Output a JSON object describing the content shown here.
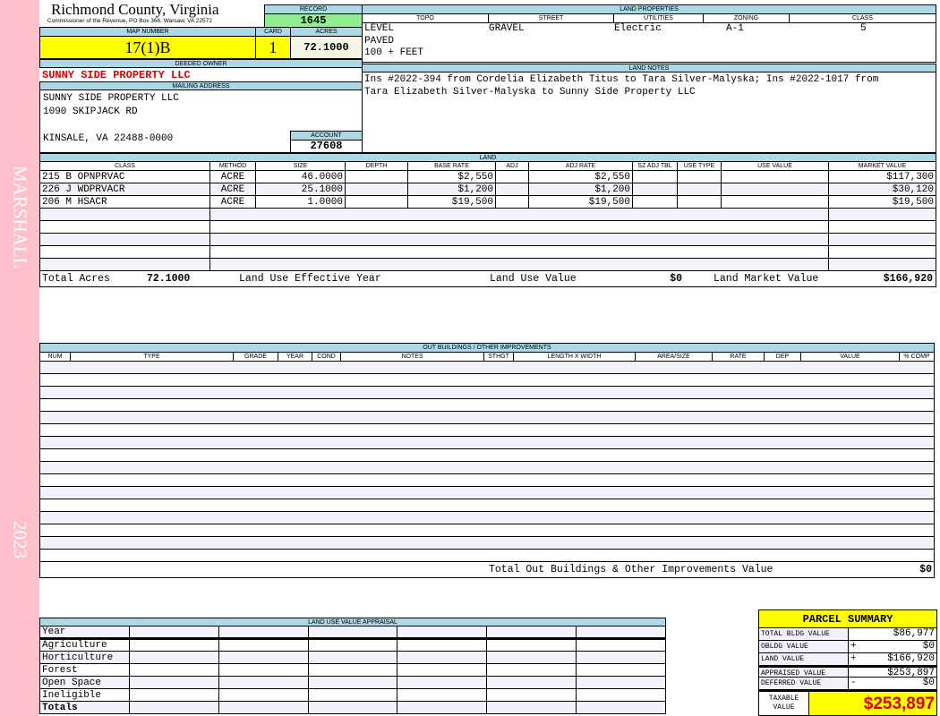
{
  "sidebar": {
    "district": "MARSHALL",
    "year": "2023",
    "color": "#ffc0cb"
  },
  "header": {
    "title": "Richmond County, Virginia",
    "subtitle": "Commissioner of the Revenue, PO Box 366, Warsaw, VA 22572",
    "record_label": "RECORD",
    "record": "1645"
  },
  "parcel": {
    "map_label": "MAP NUMBER",
    "map_number": "17(1)B",
    "card_label": "CARD",
    "card": "1",
    "acres_label": "ACRES",
    "acres": "72.1000"
  },
  "owner": {
    "label": "DEEDED OWNER",
    "name": "SUNNY SIDE PROPERTY LLC",
    "mail_label": "MAILING ADDRESS",
    "address": [
      "SUNNY SIDE PROPERTY LLC",
      "1090 SKIPJACK RD",
      "",
      "KINSALE, VA 22488-0000"
    ],
    "account_label": "ACCOUNT",
    "account": "27608"
  },
  "land_properties": {
    "label": "LAND PROPERTIES",
    "columns": [
      "TOPO",
      "STREET",
      "UTILITIES",
      "ZONING",
      "CLASS"
    ],
    "topo": [
      "LEVEL",
      "PAVED",
      "100 + FEET"
    ],
    "street": "GRAVEL",
    "utilities": "Electric",
    "zoning": "A-1",
    "class": "5"
  },
  "land_notes": {
    "label": "LAND NOTES",
    "text": "Ins #2022-394 from Cordelia Elizabeth Titus to Tara Silver-Malyska; Ins #2022-1017 from Tara Elizabeth Silver-Malyska to Sunny Side Property LLC"
  },
  "land": {
    "label": "LAND",
    "columns": [
      "CLASS",
      "METHOD",
      "SIZE",
      "DEPTH",
      "BASE RATE",
      "ADJ",
      "ADJ RATE",
      "SZ ADJ TBL",
      "USE TYPE",
      "USE VALUE",
      "MARKET VALUE"
    ],
    "rows": [
      [
        "215 B OPNPRVAC",
        "ACRE",
        "46.0000",
        "",
        "$2,550",
        "",
        "$2,550",
        "",
        "",
        "",
        "$117,300"
      ],
      [
        "226 J WDPRVACR",
        "ACRE",
        "25.1000",
        "",
        "$1,200",
        "",
        "$1,200",
        "",
        "",
        "",
        "$30,120"
      ],
      [
        "206 M HSACR",
        "ACRE",
        "1.0000",
        "",
        "$19,500",
        "",
        "$19,500",
        "",
        "",
        "",
        "$19,500"
      ]
    ],
    "total_acres_label": "Total Acres",
    "total_acres": "72.1000",
    "effective_year_label": "Land Use Effective Year",
    "effective_year": "",
    "use_value_label": "Land Use Value",
    "use_value": "$0",
    "market_value_label": "Land Market Value",
    "market_value": "$166,920"
  },
  "outbuildings": {
    "label": "OUT BUILDINGS / OTHER IMPROVEMENTS",
    "columns": [
      "NUM",
      "TYPE",
      "GRADE",
      "YEAR",
      "COND",
      "NOTES",
      "STHGT",
      "LENGTH X WIDTH",
      "AREA/SIZE",
      "RATE",
      "DEP",
      "VALUE",
      "% COMP"
    ],
    "total_label": "Total Out Buildings & Other Improvements Value",
    "total": "$0"
  },
  "land_use_appraisal": {
    "label": "LAND USE VALUE APPRAISAL",
    "year_label": "Year",
    "rows": [
      "Agriculture",
      "Horticulture",
      "Forest",
      "Open Space",
      "Ineligible"
    ],
    "totals_label": "Totals"
  },
  "summary": {
    "title": "PARCEL SUMMARY",
    "rows": [
      {
        "label": "TOTAL BLDG VALUE",
        "op": "",
        "value": "$86,977"
      },
      {
        "label": "OBLDG VALUE",
        "op": "+",
        "value": "$0"
      },
      {
        "label": "LAND VALUE",
        "op": "+",
        "value": "$166,920"
      },
      {
        "label": "APPRAISED VALUE",
        "op": "",
        "value": "$253,897"
      },
      {
        "label": "DEFERRED VALUE",
        "op": "-",
        "value": "$0"
      }
    ],
    "taxable_label": "TAXABLE VALUE",
    "taxable": "$253,897"
  }
}
